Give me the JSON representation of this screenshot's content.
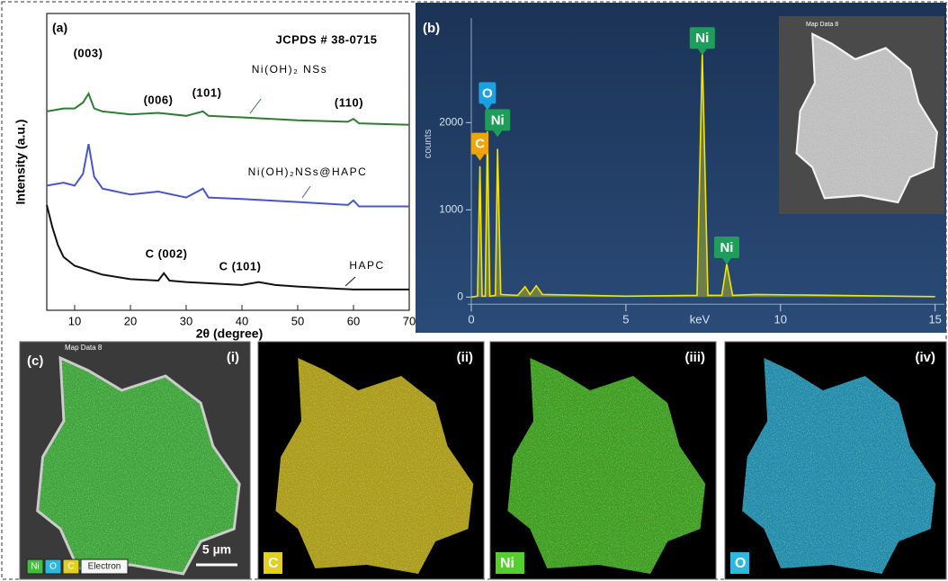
{
  "chart_data": [
    {
      "type": "line",
      "panel_label": "(a)",
      "x_label": "2θ (degree)",
      "y_label": "Intensity (a.u.)",
      "xlim": [
        5,
        70
      ],
      "xticks": [
        10,
        20,
        30,
        40,
        50,
        60,
        70
      ],
      "ylim": [
        0,
        100
      ],
      "annotations": [
        "JCPDS # 38-0715",
        "(003)",
        "(006)",
        "(101)",
        "(110)",
        "C (002)",
        "C (101)"
      ],
      "series": [
        {
          "name": "Ni(OH)₂ NSs",
          "color": "#2e7d32",
          "x": [
            5,
            8,
            10,
            11.5,
            12.5,
            13.5,
            15,
            20,
            25,
            30,
            33,
            34,
            40,
            50,
            59,
            60,
            61,
            70
          ],
          "values": [
            67,
            68,
            68,
            70,
            73,
            68,
            67,
            66,
            66.5,
            65.5,
            67,
            65.5,
            65,
            64,
            63.5,
            64.5,
            63,
            62.5
          ]
        },
        {
          "name": "Ni(OH)₂NSs@HAPC",
          "color": "#4a55c8",
          "x": [
            5,
            8,
            10,
            11.5,
            12.5,
            13.5,
            15,
            20,
            25,
            30,
            33,
            34,
            40,
            50,
            59,
            60,
            61,
            70
          ],
          "values": [
            42,
            43,
            42,
            46,
            56,
            45,
            41,
            39,
            40,
            38,
            41,
            38,
            37.5,
            36.5,
            35.5,
            37,
            35,
            35
          ]
        },
        {
          "name": "HAPC",
          "color": "#111111",
          "x": [
            5,
            6,
            7,
            8,
            10,
            15,
            20,
            25,
            26,
            27,
            30,
            40,
            43,
            46,
            50,
            60,
            70
          ],
          "values": [
            35.5,
            28,
            22,
            18,
            15,
            12,
            10.5,
            10,
            12.5,
            10,
            9.5,
            8.5,
            9.5,
            8.5,
            8,
            7,
            7
          ]
        }
      ]
    },
    {
      "type": "line",
      "panel_label": "(b)",
      "x_label": "keV",
      "y_label": "counts",
      "inset_label": "Map Data 8",
      "xlim": [
        0,
        15.3
      ],
      "xticks": [
        0,
        5,
        10,
        15
      ],
      "ylim": [
        -100,
        3200
      ],
      "yticks": [
        0,
        1000,
        2000
      ],
      "color": "#f2e600",
      "x": [
        0,
        0.2,
        0.28,
        0.35,
        0.45,
        0.52,
        0.6,
        0.78,
        0.85,
        0.95,
        1.5,
        1.74,
        1.9,
        2.1,
        2.3,
        5,
        7.3,
        7.47,
        7.65,
        8.1,
        8.26,
        8.45,
        9.2,
        15
      ],
      "values": [
        0,
        10,
        1500,
        10,
        10,
        1900,
        10,
        20,
        1700,
        30,
        20,
        120,
        30,
        130,
        30,
        10,
        20,
        2800,
        20,
        20,
        380,
        20,
        30,
        5
      ],
      "annotations": [
        {
          "text": "C",
          "x": 0.28,
          "y": 1750,
          "color": "#f0a30a"
        },
        {
          "text": "O",
          "x": 0.52,
          "y": 2330,
          "color": "#1ba1e2"
        },
        {
          "text": "Ni",
          "x": 0.85,
          "y": 2020,
          "color": "#1e9e5a"
        },
        {
          "text": "Ni",
          "x": 7.47,
          "y": 2960,
          "color": "#1e9e5a"
        },
        {
          "text": "Ni",
          "x": 8.26,
          "y": 560,
          "color": "#1e9e5a"
        }
      ]
    }
  ],
  "maps": {
    "panel_label": "(c)",
    "panels": [
      {
        "label": "(i)",
        "map_label": "Map Data 8",
        "legend": [
          "Ni",
          "O",
          "C",
          "Electron"
        ],
        "scale_bar": "5 µm",
        "color": "#3fbf3a"
      },
      {
        "label": "(ii)",
        "element": "C",
        "color": "#e3cf1f"
      },
      {
        "label": "(iii)",
        "element": "Ni",
        "color": "#52d12a"
      },
      {
        "label": "(iv)",
        "element": "O",
        "color": "#2cb9e0"
      }
    ]
  }
}
